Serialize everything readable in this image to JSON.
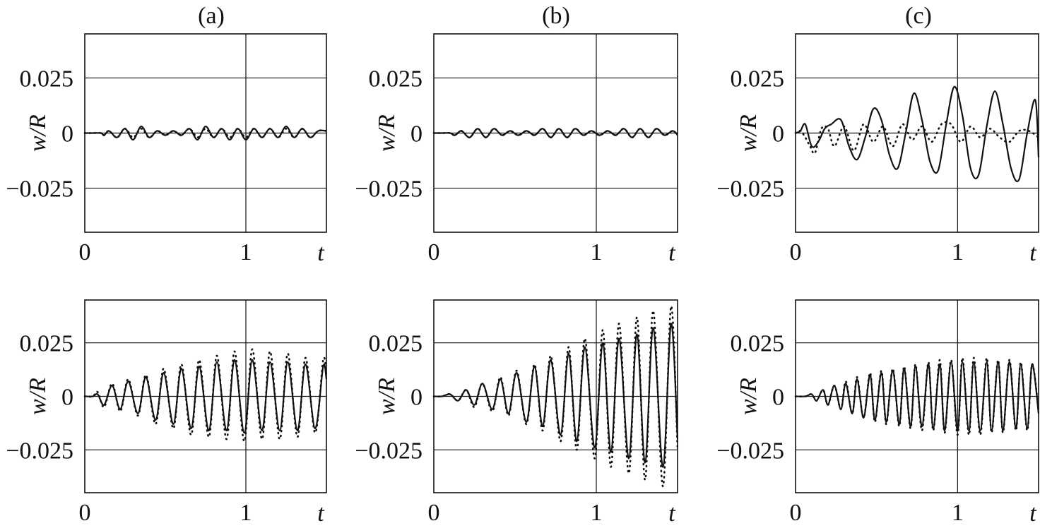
{
  "chart_data": [
    {
      "type": "line",
      "panel_label": "(a)",
      "xlabel": "t",
      "ylabel": "w/R",
      "x_ticks": [
        "0",
        "1"
      ],
      "y_ticks": [
        "0.025",
        "0",
        "−0.025"
      ],
      "xlim": [
        0,
        1.5
      ],
      "ylim": [
        -0.045,
        0.045
      ],
      "grid": true,
      "series": [
        {
          "style": "solid",
          "x": [
            0.0,
            0.05,
            0.1,
            0.12,
            0.15,
            0.2,
            0.25,
            0.3,
            0.35,
            0.4,
            0.45,
            0.5,
            0.55,
            0.6,
            0.65,
            0.7,
            0.75,
            0.8,
            0.85,
            0.9,
            0.95,
            1.0,
            1.05,
            1.1,
            1.15,
            1.2,
            1.25,
            1.3,
            1.35,
            1.4,
            1.45,
            1.5
          ],
          "y": [
            0,
            0,
            0,
            -0.001,
            0.001,
            -0.002,
            0.002,
            -0.003,
            0.003,
            -0.002,
            0.001,
            -0.001,
            0.001,
            -0.001,
            0.002,
            -0.003,
            0.003,
            -0.002,
            0.002,
            -0.003,
            0.002,
            -0.003,
            0.002,
            -0.002,
            0.002,
            -0.002,
            0.003,
            -0.002,
            0.002,
            -0.002,
            0.001,
            0.001
          ]
        },
        {
          "style": "dotted",
          "x": [
            0.0,
            0.05,
            0.1,
            0.12,
            0.15,
            0.2,
            0.25,
            0.3,
            0.35,
            0.4,
            0.45,
            0.5,
            0.55,
            0.6,
            0.65,
            0.7,
            0.75,
            0.8,
            0.85,
            0.9,
            0.95,
            1.0,
            1.05,
            1.1,
            1.15,
            1.2,
            1.25,
            1.3,
            1.35,
            1.4,
            1.45,
            1.5
          ],
          "y": [
            0,
            0,
            0,
            -0.001,
            0.001,
            -0.002,
            0.002,
            -0.002,
            0.002,
            -0.002,
            0.001,
            -0.001,
            0.001,
            -0.001,
            0.002,
            -0.002,
            0.002,
            -0.002,
            0.002,
            -0.002,
            0.002,
            -0.002,
            0.002,
            -0.002,
            0.002,
            -0.002,
            0.002,
            -0.002,
            0.002,
            -0.002,
            0.001,
            0.001
          ]
        }
      ]
    },
    {
      "type": "line",
      "panel_label": "(b)",
      "xlabel": "t",
      "ylabel": "w/R",
      "x_ticks": [
        "0",
        "1"
      ],
      "y_ticks": [
        "0.025",
        "0",
        "−0.025"
      ],
      "xlim": [
        0,
        1.5
      ],
      "ylim": [
        -0.045,
        0.045
      ],
      "grid": true,
      "series": [
        {
          "style": "solid",
          "x": [
            0.0,
            0.05,
            0.1,
            0.13,
            0.17,
            0.22,
            0.27,
            0.32,
            0.37,
            0.42,
            0.47,
            0.52,
            0.57,
            0.62,
            0.67,
            0.72,
            0.77,
            0.82,
            0.87,
            0.92,
            0.97,
            1.02,
            1.07,
            1.12,
            1.17,
            1.22,
            1.27,
            1.32,
            1.37,
            1.42,
            1.47,
            1.5
          ],
          "y": [
            0,
            0,
            0,
            -0.001,
            0.001,
            -0.002,
            0.002,
            -0.002,
            0.002,
            -0.001,
            0.001,
            -0.001,
            0.001,
            -0.001,
            0.002,
            -0.002,
            0.002,
            -0.002,
            0.002,
            -0.001,
            0.001,
            -0.001,
            0.001,
            -0.001,
            0.002,
            -0.002,
            0.002,
            -0.002,
            0.002,
            -0.001,
            0.001,
            -0.001
          ]
        },
        {
          "style": "dotted",
          "x": [
            0.0,
            0.05,
            0.1,
            0.13,
            0.17,
            0.22,
            0.27,
            0.32,
            0.37,
            0.42,
            0.47,
            0.52,
            0.57,
            0.62,
            0.67,
            0.72,
            0.77,
            0.82,
            0.87,
            0.92,
            0.97,
            1.02,
            1.07,
            1.12,
            1.17,
            1.22,
            1.27,
            1.32,
            1.37,
            1.42,
            1.47,
            1.5
          ],
          "y": [
            0,
            0,
            0,
            -0.001,
            0.001,
            -0.002,
            0.002,
            -0.002,
            0.002,
            -0.001,
            0.001,
            -0.001,
            0.001,
            -0.001,
            0.002,
            -0.002,
            0.002,
            -0.002,
            0.002,
            -0.001,
            0.001,
            -0.001,
            0.001,
            -0.001,
            0.002,
            -0.002,
            0.002,
            -0.002,
            0.002,
            -0.001,
            0.001,
            -0.001
          ]
        }
      ]
    },
    {
      "type": "line",
      "panel_label": "(c)",
      "xlabel": "t",
      "ylabel": "w/R",
      "x_ticks": [
        "0",
        "1"
      ],
      "y_ticks": [
        "0.025",
        "0",
        "−0.025"
      ],
      "xlim": [
        0,
        1.5
      ],
      "ylim": [
        -0.045,
        0.045
      ],
      "grid": true,
      "series": [
        {
          "style": "solid",
          "x": [
            0.0,
            0.03,
            0.06,
            0.1,
            0.14,
            0.18,
            0.22,
            0.28,
            0.33,
            0.38,
            0.43,
            0.48,
            0.53,
            0.58,
            0.63,
            0.68,
            0.73,
            0.78,
            0.83,
            0.88,
            0.93,
            0.98,
            1.03,
            1.08,
            1.13,
            1.18,
            1.23,
            1.28,
            1.33,
            1.38,
            1.43,
            1.48,
            1.5
          ],
          "y": [
            0,
            0.001,
            0.004,
            -0.006,
            -0.004,
            0.002,
            0.004,
            0.006,
            -0.006,
            -0.012,
            -0.002,
            0.011,
            0.006,
            -0.01,
            -0.016,
            0.0,
            0.018,
            0.006,
            -0.013,
            -0.017,
            0.004,
            0.021,
            0.008,
            -0.016,
            -0.019,
            0.003,
            0.019,
            0.004,
            -0.016,
            -0.021,
            0.0,
            0.015,
            -0.011
          ]
        },
        {
          "style": "dotted",
          "x": [
            0.0,
            0.03,
            0.06,
            0.09,
            0.12,
            0.16,
            0.2,
            0.24,
            0.3,
            0.36,
            0.42,
            0.48,
            0.54,
            0.6,
            0.66,
            0.72,
            0.78,
            0.84,
            0.9,
            0.96,
            1.02,
            1.08,
            1.14,
            1.2,
            1.26,
            1.32,
            1.38,
            1.44,
            1.5
          ],
          "y": [
            0,
            0.001,
            -0.002,
            -0.006,
            -0.009,
            0.002,
            0.002,
            -0.006,
            0.003,
            -0.008,
            0.004,
            -0.004,
            0.003,
            -0.006,
            0.004,
            -0.003,
            0.003,
            -0.004,
            0.004,
            0.004,
            -0.004,
            0.003,
            -0.002,
            0.002,
            -0.002,
            -0.004,
            0.001,
            0.001,
            -0.002
          ]
        }
      ]
    },
    {
      "type": "line",
      "panel_label": "",
      "xlabel": "t",
      "ylabel": "w/R",
      "x_ticks": [
        "0",
        "1"
      ],
      "y_ticks": [
        "0.025",
        "0",
        "−0.025"
      ],
      "xlim": [
        0,
        1.5
      ],
      "ylim": [
        -0.045,
        0.045
      ],
      "grid": true,
      "series": [
        {
          "style": "solid",
          "x": [
            0.0,
            0.05,
            0.08,
            0.12,
            0.17,
            0.22,
            0.27,
            0.33,
            0.38,
            0.44,
            0.49,
            0.55,
            0.6,
            0.66,
            0.71,
            0.77,
            0.82,
            0.88,
            0.93,
            0.99,
            1.04,
            1.1,
            1.15,
            1.21,
            1.26,
            1.32,
            1.37,
            1.43,
            1.48,
            1.5
          ],
          "y": [
            0,
            0,
            0.001,
            -0.004,
            0.005,
            -0.006,
            0.007,
            -0.008,
            0.009,
            -0.011,
            0.011,
            -0.013,
            0.013,
            -0.015,
            0.014,
            -0.016,
            0.016,
            -0.016,
            0.017,
            -0.017,
            0.017,
            -0.016,
            0.016,
            -0.016,
            0.016,
            -0.016,
            0.015,
            -0.015,
            0.014,
            0.008
          ]
        },
        {
          "style": "dotted",
          "x": [
            0.0,
            0.05,
            0.08,
            0.12,
            0.17,
            0.22,
            0.27,
            0.33,
            0.38,
            0.44,
            0.49,
            0.55,
            0.6,
            0.66,
            0.71,
            0.77,
            0.82,
            0.88,
            0.93,
            0.99,
            1.04,
            1.1,
            1.15,
            1.21,
            1.26,
            1.32,
            1.37,
            1.43,
            1.48,
            1.5
          ],
          "y": [
            0,
            0,
            0.002,
            -0.005,
            0.006,
            -0.007,
            0.008,
            -0.009,
            0.01,
            -0.013,
            0.013,
            -0.015,
            0.015,
            -0.018,
            0.017,
            -0.019,
            0.019,
            -0.02,
            0.021,
            -0.021,
            0.022,
            -0.02,
            0.021,
            -0.02,
            0.02,
            -0.019,
            0.018,
            -0.017,
            0.017,
            0.01
          ]
        }
      ]
    },
    {
      "type": "line",
      "panel_label": "",
      "xlabel": "t",
      "ylabel": "w/R",
      "x_ticks": [
        "0",
        "1"
      ],
      "y_ticks": [
        "0.025",
        "0",
        "−0.025"
      ],
      "xlim": [
        0,
        1.5
      ],
      "ylim": [
        -0.045,
        0.045
      ],
      "grid": true,
      "series": [
        {
          "style": "solid",
          "x": [
            0.0,
            0.05,
            0.1,
            0.15,
            0.2,
            0.25,
            0.3,
            0.36,
            0.41,
            0.46,
            0.51,
            0.57,
            0.62,
            0.67,
            0.72,
            0.78,
            0.83,
            0.88,
            0.93,
            0.99,
            1.04,
            1.09,
            1.14,
            1.2,
            1.25,
            1.3,
            1.35,
            1.41,
            1.46,
            1.5
          ],
          "y": [
            0,
            0,
            0.001,
            -0.002,
            0.003,
            -0.004,
            0.006,
            -0.006,
            0.008,
            -0.008,
            0.011,
            -0.012,
            0.014,
            -0.014,
            0.017,
            -0.018,
            0.02,
            -0.021,
            0.023,
            -0.024,
            0.025,
            -0.026,
            0.027,
            -0.029,
            0.029,
            -0.031,
            0.032,
            -0.033,
            0.034,
            -0.02
          ]
        },
        {
          "style": "dotted",
          "x": [
            0.0,
            0.05,
            0.1,
            0.15,
            0.2,
            0.25,
            0.3,
            0.36,
            0.41,
            0.46,
            0.51,
            0.57,
            0.62,
            0.67,
            0.72,
            0.78,
            0.83,
            0.88,
            0.93,
            0.99,
            1.04,
            1.09,
            1.14,
            1.2,
            1.25,
            1.3,
            1.35,
            1.41,
            1.46,
            1.5
          ],
          "y": [
            0,
            0,
            0.001,
            -0.002,
            0.003,
            -0.005,
            0.006,
            -0.007,
            0.009,
            -0.009,
            0.012,
            -0.013,
            0.015,
            -0.016,
            0.019,
            -0.021,
            0.023,
            -0.025,
            0.027,
            -0.029,
            0.031,
            -0.033,
            0.034,
            -0.036,
            0.037,
            -0.039,
            0.04,
            -0.042,
            0.042,
            -0.025
          ]
        }
      ]
    },
    {
      "type": "line",
      "panel_label": "",
      "xlabel": "t",
      "ylabel": "w/R",
      "x_ticks": [
        "0",
        "1"
      ],
      "y_ticks": [
        "0.025",
        "0",
        "−0.025"
      ],
      "xlim": [
        0,
        1.5
      ],
      "ylim": [
        -0.045,
        0.045
      ],
      "grid": true,
      "series": [
        {
          "style": "solid",
          "x": [
            0.0,
            0.06,
            0.1,
            0.13,
            0.17,
            0.2,
            0.24,
            0.28,
            0.31,
            0.35,
            0.38,
            0.42,
            0.46,
            0.49,
            0.53,
            0.56,
            0.6,
            0.64,
            0.67,
            0.71,
            0.74,
            0.78,
            0.82,
            0.85,
            0.89,
            0.92,
            0.96,
            1.0,
            1.03,
            1.07,
            1.1,
            1.14,
            1.18,
            1.21,
            1.25,
            1.28,
            1.32,
            1.36,
            1.39,
            1.43,
            1.46,
            1.5
          ],
          "y": [
            0,
            0,
            0.001,
            -0.002,
            0.003,
            -0.004,
            0.005,
            -0.006,
            0.006,
            -0.008,
            0.008,
            -0.01,
            0.01,
            -0.011,
            0.011,
            -0.012,
            0.012,
            -0.013,
            0.013,
            -0.014,
            0.014,
            -0.014,
            0.015,
            -0.015,
            0.015,
            -0.016,
            0.016,
            -0.016,
            0.016,
            -0.016,
            0.016,
            -0.016,
            0.016,
            -0.016,
            0.016,
            -0.016,
            0.016,
            -0.015,
            0.015,
            -0.015,
            0.015,
            -0.008
          ]
        },
        {
          "style": "dotted",
          "x": [
            0.0,
            0.06,
            0.1,
            0.13,
            0.17,
            0.2,
            0.24,
            0.28,
            0.31,
            0.35,
            0.38,
            0.42,
            0.46,
            0.49,
            0.53,
            0.56,
            0.6,
            0.64,
            0.67,
            0.71,
            0.74,
            0.78,
            0.82,
            0.85,
            0.89,
            0.92,
            0.96,
            1.0,
            1.03,
            1.07,
            1.1,
            1.14,
            1.18,
            1.21,
            1.25,
            1.28,
            1.32,
            1.36,
            1.39,
            1.43,
            1.46,
            1.5
          ],
          "y": [
            0,
            0,
            0.001,
            -0.002,
            0.003,
            -0.004,
            0.005,
            -0.006,
            0.007,
            -0.008,
            0.009,
            -0.01,
            0.011,
            -0.012,
            0.012,
            -0.013,
            0.013,
            -0.014,
            0.014,
            -0.015,
            0.015,
            -0.016,
            0.016,
            -0.016,
            0.017,
            -0.017,
            0.017,
            -0.018,
            0.018,
            -0.018,
            0.018,
            -0.018,
            0.018,
            -0.017,
            0.017,
            -0.017,
            0.017,
            -0.016,
            0.016,
            -0.016,
            0.015,
            -0.007
          ]
        }
      ]
    }
  ]
}
